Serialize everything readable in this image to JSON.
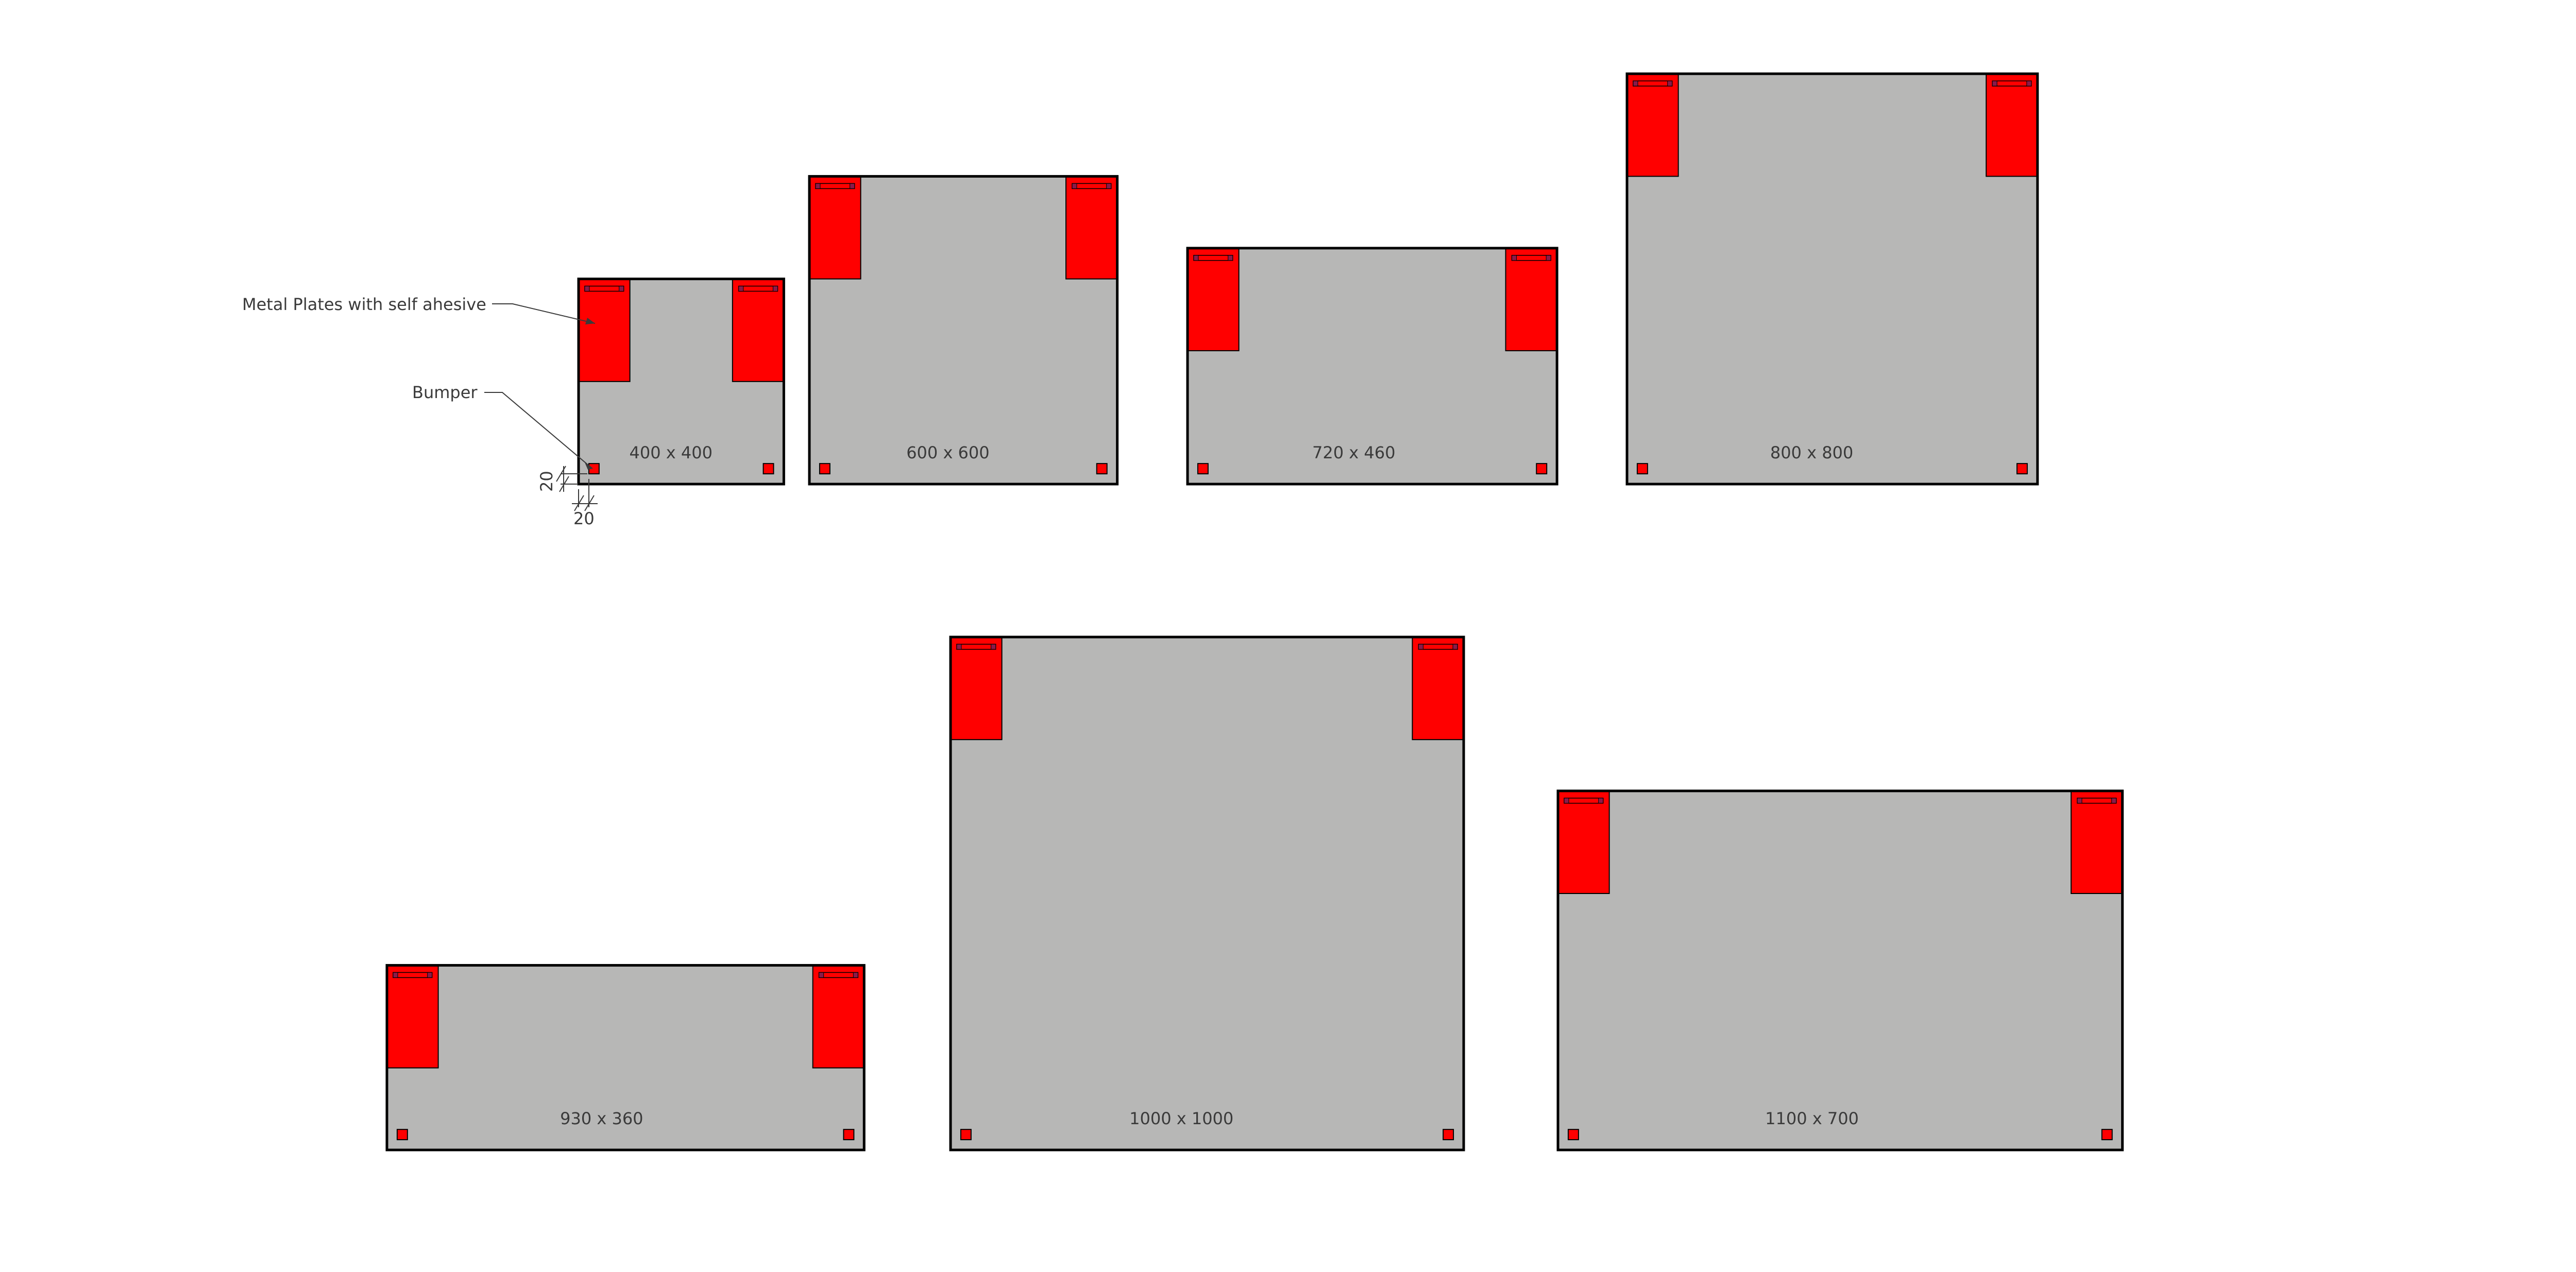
{
  "colors": {
    "board": "#b7b7b6",
    "plate": "#ff0000",
    "clip_end": "#8b1a4a",
    "outline": "#000000",
    "text": "#3a3a3a"
  },
  "callouts": {
    "plates": "Metal Plates with self ahesive",
    "bumper": "Bumper"
  },
  "dimensions": {
    "bumper_offset_vertical": "20",
    "bumper_offset_horizontal": "20"
  },
  "boards": [
    {
      "label": "400 x 400",
      "width_mm": 400,
      "height_mm": 400
    },
    {
      "label": "600 x 600",
      "width_mm": 600,
      "height_mm": 600
    },
    {
      "label": "720 x 460",
      "width_mm": 720,
      "height_mm": 460
    },
    {
      "label": "800 x 800",
      "width_mm": 800,
      "height_mm": 800
    },
    {
      "label": "930 x 360",
      "width_mm": 930,
      "height_mm": 360
    },
    {
      "label": "1000 x 1000",
      "width_mm": 1000,
      "height_mm": 1000
    },
    {
      "label": "1100 x 700",
      "width_mm": 1100,
      "height_mm": 700
    }
  ]
}
